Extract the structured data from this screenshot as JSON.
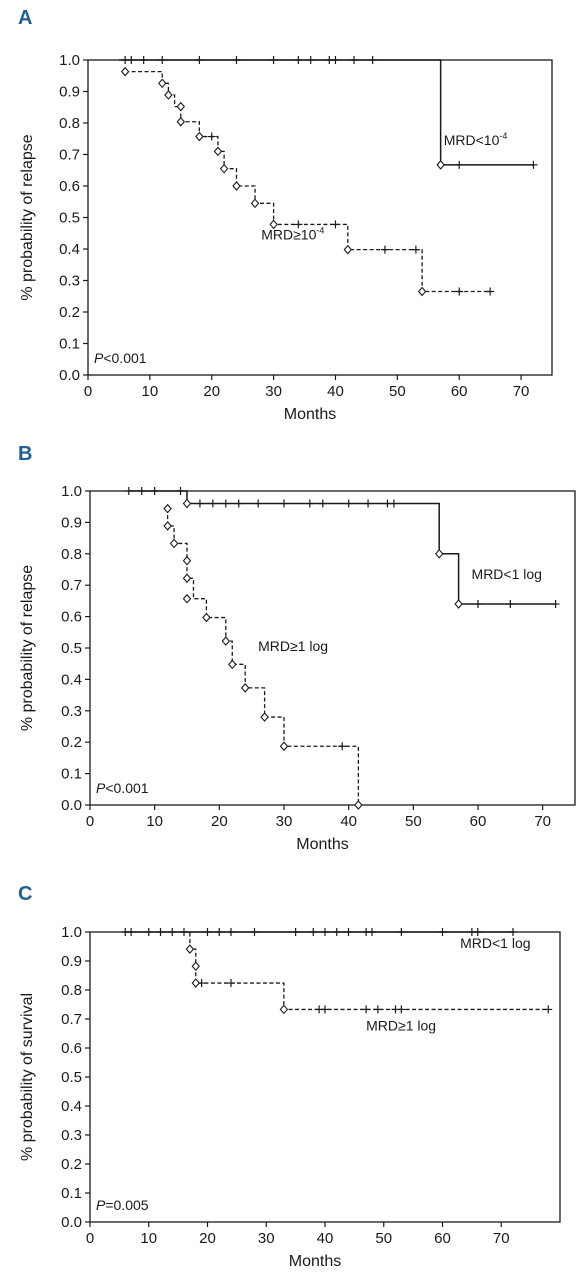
{
  "chart_data": [
    {
      "panel_letter": "A",
      "type": "line",
      "step": true,
      "xlabel": "Months",
      "ylabel": "% probability of relapse",
      "xlim": [
        0,
        75
      ],
      "ylim": [
        0,
        1.0
      ],
      "x_ticks": [
        0,
        10,
        20,
        30,
        40,
        50,
        60,
        70
      ],
      "y_ticks": [
        0.0,
        0.1,
        0.2,
        0.3,
        0.4,
        0.5,
        0.6,
        0.7,
        0.8,
        0.9,
        1.0
      ],
      "p_value": {
        "prefix": "P",
        "text": "<0.001"
      },
      "series": [
        {
          "name": "MRD<10⁻⁴",
          "style": "solid",
          "steps": [
            [
              5,
              1.0
            ],
            [
              57,
              0.667
            ],
            [
              72,
              0.667
            ]
          ],
          "event_markers": [
            [
              57,
              0.667
            ]
          ],
          "censor_marks": [
            [
              6,
              1.0
            ],
            [
              7,
              1.0
            ],
            [
              9,
              1.0
            ],
            [
              12,
              1.0
            ],
            [
              18,
              1.0
            ],
            [
              24,
              1.0
            ],
            [
              30,
              1.0
            ],
            [
              34,
              1.0
            ],
            [
              36,
              1.0
            ],
            [
              39,
              1.0
            ],
            [
              40,
              1.0
            ],
            [
              43,
              1.0
            ],
            [
              46,
              1.0
            ],
            [
              60,
              0.667
            ],
            [
              72,
              0.667
            ]
          ]
        },
        {
          "name": "MRD≥10⁻⁴",
          "style": "dashed",
          "steps": [
            [
              6,
              0.963
            ],
            [
              12,
              0.926
            ],
            [
              13,
              0.889
            ],
            [
              14,
              0.852
            ],
            [
              15,
              0.804
            ],
            [
              18,
              0.757
            ],
            [
              21,
              0.71
            ],
            [
              22,
              0.655
            ],
            [
              24,
              0.6
            ],
            [
              27,
              0.545
            ],
            [
              30,
              0.478
            ],
            [
              42,
              0.398
            ],
            [
              54,
              0.265
            ],
            [
              65,
              0.265
            ]
          ],
          "event_markers": [
            [
              6,
              0.963
            ],
            [
              12,
              0.926
            ],
            [
              13,
              0.889
            ],
            [
              15,
              0.852
            ],
            [
              15,
              0.804
            ],
            [
              18,
              0.757
            ],
            [
              21,
              0.71
            ],
            [
              22,
              0.655
            ],
            [
              24,
              0.6
            ],
            [
              27,
              0.545
            ],
            [
              30,
              0.478
            ],
            [
              42,
              0.398
            ],
            [
              54,
              0.265
            ]
          ],
          "censor_marks": [
            [
              20,
              0.757
            ],
            [
              34,
              0.478
            ],
            [
              40,
              0.478
            ],
            [
              48,
              0.398
            ],
            [
              53,
              0.398
            ],
            [
              60,
              0.265
            ],
            [
              65,
              0.265
            ]
          ]
        }
      ],
      "annotations": [
        {
          "text": "MRD<10",
          "sup": "-4",
          "x": 57.5,
          "y": 0.73
        },
        {
          "text": "MRD≥10",
          "sup": "-4",
          "x": 28,
          "y": 0.43
        }
      ]
    },
    {
      "panel_letter": "B",
      "type": "line",
      "step": true,
      "xlabel": "Months",
      "ylabel": "% probability of relapse",
      "xlim": [
        0,
        75
      ],
      "ylim": [
        0,
        1.0
      ],
      "x_ticks": [
        0,
        10,
        20,
        30,
        40,
        50,
        60,
        70
      ],
      "y_ticks": [
        0.0,
        0.1,
        0.2,
        0.3,
        0.4,
        0.5,
        0.6,
        0.7,
        0.8,
        0.9,
        1.0
      ],
      "p_value": {
        "prefix": "P",
        "text": "<0.001"
      },
      "series": [
        {
          "name": "MRD<1 log",
          "style": "solid",
          "steps": [
            [
              6,
              1.0
            ],
            [
              15,
              0.96
            ],
            [
              54,
              0.8
            ],
            [
              57,
              0.64
            ],
            [
              72,
              0.64
            ]
          ],
          "event_markers": [
            [
              15,
              0.96
            ],
            [
              54,
              0.8
            ],
            [
              57,
              0.64
            ]
          ],
          "censor_marks": [
            [
              6,
              1.0
            ],
            [
              8,
              1.0
            ],
            [
              10,
              1.0
            ],
            [
              14,
              1.0
            ],
            [
              17,
              0.96
            ],
            [
              19,
              0.96
            ],
            [
              21,
              0.96
            ],
            [
              23,
              0.96
            ],
            [
              26,
              0.96
            ],
            [
              30,
              0.96
            ],
            [
              34,
              0.96
            ],
            [
              36,
              0.96
            ],
            [
              40,
              0.96
            ],
            [
              43,
              0.96
            ],
            [
              46,
              0.96
            ],
            [
              47,
              0.96
            ],
            [
              60,
              0.64
            ],
            [
              65,
              0.64
            ],
            [
              72,
              0.64
            ]
          ]
        },
        {
          "name": "MRD≥1 log",
          "style": "dashed",
          "steps": [
            [
              12,
              0.944
            ],
            [
              12,
              0.889
            ],
            [
              13,
              0.833
            ],
            [
              15,
              0.778
            ],
            [
              15,
              0.722
            ],
            [
              16,
              0.657
            ],
            [
              18,
              0.597
            ],
            [
              21,
              0.522
            ],
            [
              22,
              0.448
            ],
            [
              24,
              0.373
            ],
            [
              27,
              0.28
            ],
            [
              30,
              0.187
            ],
            [
              41,
              0.187
            ],
            [
              41.5,
              0.0
            ]
          ],
          "event_markers": [
            [
              12,
              0.944
            ],
            [
              12,
              0.889
            ],
            [
              13,
              0.833
            ],
            [
              15,
              0.778
            ],
            [
              15,
              0.722
            ],
            [
              15,
              0.657
            ],
            [
              18,
              0.597
            ],
            [
              21,
              0.522
            ],
            [
              22,
              0.448
            ],
            [
              24,
              0.373
            ],
            [
              27,
              0.28
            ],
            [
              30,
              0.187
            ],
            [
              41.5,
              0.0
            ]
          ],
          "censor_marks": [
            [
              39,
              0.187
            ]
          ]
        }
      ],
      "annotations": [
        {
          "text": "MRD<1 log",
          "x": 59,
          "y": 0.72
        },
        {
          "text": "MRD≥1 log",
          "x": 26,
          "y": 0.49
        }
      ]
    },
    {
      "panel_letter": "C",
      "type": "line",
      "step": true,
      "xlabel": "Months",
      "ylabel": "% probability of survival",
      "xlim": [
        0,
        80
      ],
      "ylim": [
        0,
        1.0
      ],
      "x_ticks": [
        0,
        10,
        20,
        30,
        40,
        50,
        60,
        70
      ],
      "y_ticks": [
        0.0,
        0.1,
        0.2,
        0.3,
        0.4,
        0.5,
        0.6,
        0.7,
        0.8,
        0.9,
        1.0
      ],
      "p_value": {
        "prefix": "P",
        "text": "=0.005"
      },
      "series": [
        {
          "name": "MRD<1 log",
          "style": "solid",
          "steps": [
            [
              6,
              1.0
            ],
            [
              72,
              1.0
            ]
          ],
          "event_markers": [],
          "censor_marks": [
            [
              6,
              1.0
            ],
            [
              7,
              1.0
            ],
            [
              10,
              1.0
            ],
            [
              12,
              1.0
            ],
            [
              14,
              1.0
            ],
            [
              16,
              1.0
            ],
            [
              20,
              1.0
            ],
            [
              22,
              1.0
            ],
            [
              24,
              1.0
            ],
            [
              28,
              1.0
            ],
            [
              35,
              1.0
            ],
            [
              38,
              1.0
            ],
            [
              40,
              1.0
            ],
            [
              42,
              1.0
            ],
            [
              44,
              1.0
            ],
            [
              47,
              1.0
            ],
            [
              48,
              1.0
            ],
            [
              53,
              1.0
            ],
            [
              60,
              1.0
            ],
            [
              65,
              1.0
            ],
            [
              66,
              1.0
            ],
            [
              72,
              1.0
            ]
          ]
        },
        {
          "name": "MRD≥1 log",
          "style": "dashed",
          "steps": [
            [
              16,
              1.0
            ],
            [
              17,
              0.941
            ],
            [
              18,
              0.882
            ],
            [
              18,
              0.824
            ],
            [
              33,
              0.824
            ],
            [
              33,
              0.733
            ],
            [
              78,
              0.733
            ]
          ],
          "event_markers": [
            [
              17,
              0.941
            ],
            [
              18,
              0.882
            ],
            [
              18,
              0.824
            ],
            [
              33,
              0.733
            ]
          ],
          "censor_marks": [
            [
              19,
              0.824
            ],
            [
              24,
              0.824
            ],
            [
              39,
              0.733
            ],
            [
              40,
              0.733
            ],
            [
              47,
              0.733
            ],
            [
              49,
              0.733
            ],
            [
              52,
              0.733
            ],
            [
              53,
              0.733
            ],
            [
              78,
              0.733
            ]
          ]
        }
      ],
      "annotations": [
        {
          "text": "MRD<1 log",
          "x": 63,
          "y": 0.945
        },
        {
          "text": "MRD≥1 log",
          "x": 47,
          "y": 0.66
        }
      ]
    }
  ]
}
